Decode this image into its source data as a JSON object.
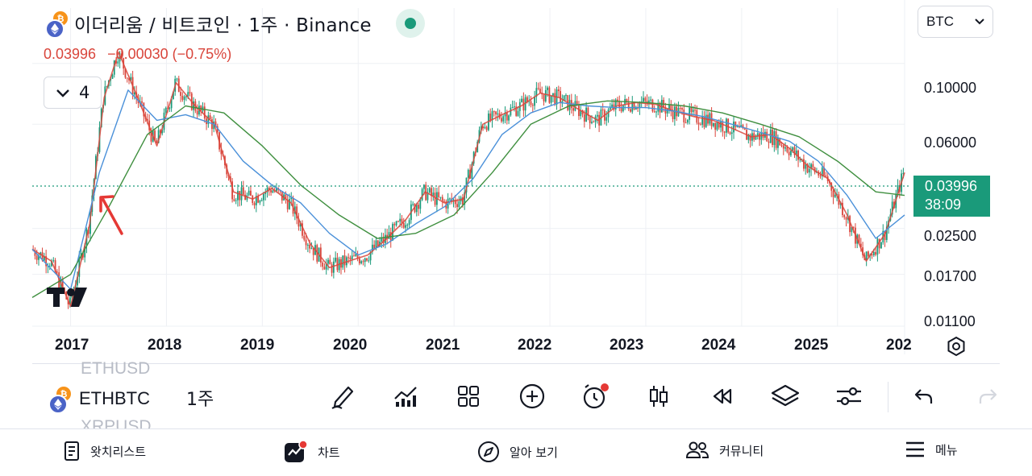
{
  "header": {
    "symbol_title": "이더리움 / 비트코인 · 1주 · Binance",
    "currency": "BTC",
    "coin_icons": [
      "ethereum-icon",
      "bitcoin-icon"
    ],
    "live_status_color": "#1a9a7a"
  },
  "ohlc": {
    "close": "0.03996",
    "change": "−0.00030 (−0.75%)",
    "color": "#d9453b"
  },
  "indicators_toggle": {
    "count": "4"
  },
  "price_axis": {
    "labels": [
      "0.10000",
      "0.06000",
      "0.02500",
      "0.01700",
      "0.01100"
    ],
    "last_price_tag": "0.03996",
    "countdown": "38:09",
    "tag_color": "#1a9a7a"
  },
  "time_axis": {
    "labels": [
      "2017",
      "2018",
      "2019",
      "2020",
      "2021",
      "2022",
      "2023",
      "2024",
      "2025",
      "202"
    ]
  },
  "chart_data": {
    "type": "line",
    "title": "이더리움 / 비트코인 · 1주 · Binance",
    "x_range": [
      2016.6,
      2025.7
    ],
    "y_scale": "log",
    "ylim": [
      0.011,
      0.13
    ],
    "last_price": 0.03996,
    "up_color": "#1a9a7a",
    "down_color": "#d9453b",
    "series": [
      {
        "color": "#d9453b",
        "x": [
          2016.6,
          2016.8,
          2017.0,
          2017.2,
          2017.35,
          2017.5,
          2017.7,
          2017.9,
          2018.1,
          2018.3,
          2018.5,
          2018.7,
          2018.9,
          2019.1,
          2019.3,
          2019.5,
          2019.7,
          2019.9,
          2020.1,
          2020.3,
          2020.5,
          2020.7,
          2020.9,
          2021.1,
          2021.3,
          2021.5,
          2021.7,
          2021.9,
          2022.1,
          2022.3,
          2022.5,
          2022.7,
          2022.9,
          2023.1,
          2023.3,
          2023.5,
          2023.7,
          2023.9,
          2024.1,
          2024.3,
          2024.5,
          2024.7,
          2024.9,
          2025.1,
          2025.3,
          2025.5,
          2025.7
        ],
        "y": [
          0.021,
          0.019,
          0.013,
          0.026,
          0.075,
          0.11,
          0.075,
          0.05,
          0.085,
          0.07,
          0.06,
          0.034,
          0.032,
          0.035,
          0.031,
          0.022,
          0.018,
          0.019,
          0.02,
          0.023,
          0.027,
          0.034,
          0.031,
          0.032,
          0.06,
          0.065,
          0.07,
          0.078,
          0.075,
          0.068,
          0.062,
          0.07,
          0.072,
          0.071,
          0.067,
          0.064,
          0.062,
          0.058,
          0.054,
          0.055,
          0.049,
          0.042,
          0.038,
          0.028,
          0.019,
          0.024,
          0.04
        ]
      },
      {
        "color": "#4a90d9",
        "x": [
          2016.6,
          2017.0,
          2017.3,
          2017.6,
          2017.9,
          2018.2,
          2018.5,
          2018.8,
          2019.1,
          2019.4,
          2019.7,
          2020.0,
          2020.3,
          2020.6,
          2020.9,
          2021.2,
          2021.5,
          2021.8,
          2022.1,
          2022.4,
          2022.7,
          2023.0,
          2023.3,
          2023.6,
          2023.9,
          2024.2,
          2024.5,
          2024.8,
          2025.1,
          2025.4,
          2025.7
        ],
        "y": [
          0.021,
          0.015,
          0.04,
          0.08,
          0.062,
          0.065,
          0.06,
          0.044,
          0.036,
          0.031,
          0.024,
          0.02,
          0.022,
          0.026,
          0.03,
          0.038,
          0.055,
          0.066,
          0.072,
          0.07,
          0.069,
          0.069,
          0.067,
          0.064,
          0.06,
          0.056,
          0.052,
          0.044,
          0.033,
          0.023,
          0.028
        ]
      },
      {
        "color": "#3f8f3f",
        "x": [
          2016.6,
          2017.0,
          2017.4,
          2017.8,
          2018.2,
          2018.6,
          2019.0,
          2019.4,
          2019.8,
          2020.2,
          2020.6,
          2021.0,
          2021.4,
          2021.8,
          2022.2,
          2022.6,
          2023.0,
          2023.4,
          2023.8,
          2024.2,
          2024.6,
          2025.0,
          2025.4,
          2025.7
        ],
        "y": [
          0.014,
          0.017,
          0.03,
          0.055,
          0.07,
          0.066,
          0.05,
          0.036,
          0.028,
          0.023,
          0.024,
          0.028,
          0.04,
          0.06,
          0.07,
          0.073,
          0.072,
          0.07,
          0.066,
          0.06,
          0.054,
          0.044,
          0.034,
          0.033
        ]
      }
    ]
  },
  "bottom_toolbar": {
    "ticker_above": "ETHUSD",
    "ticker_current": "ETHBTC",
    "ticker_below": "XRPUSD",
    "interval": "1주",
    "tools": [
      "pencil-icon",
      "indicators-icon",
      "layout-grid-icon",
      "add-icon",
      "alert-clock-icon",
      "candles-icon",
      "replay-icon",
      "layers-icon",
      "settings-sliders-icon",
      "undo-icon",
      "redo-icon"
    ]
  },
  "nav": {
    "watchlist": "왓치리스트",
    "chart": "차트",
    "explore": "알아 보기",
    "community": "커뮤니티",
    "menu": "메뉴"
  }
}
